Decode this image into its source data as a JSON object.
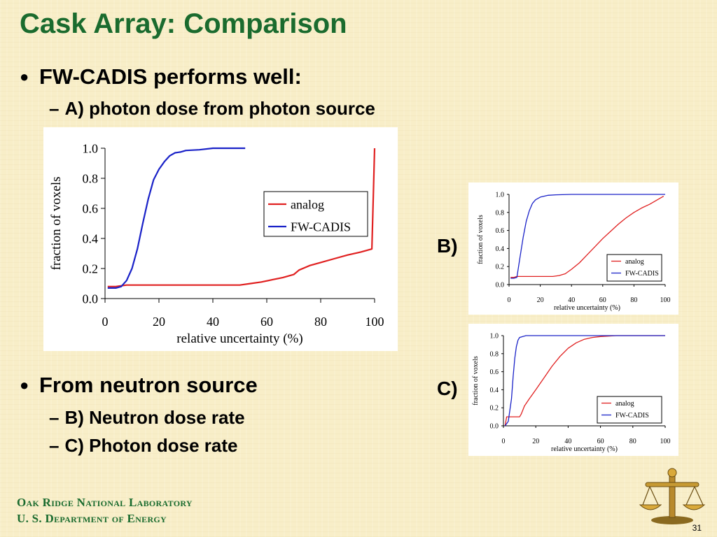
{
  "slide": {
    "title": "Cask Array: Comparison",
    "bullets": [
      {
        "text": "FW-CADIS performs well:",
        "subs": [
          "A) photon dose from photon source"
        ]
      },
      {
        "text": "From neutron source",
        "subs": [
          "B) Neutron dose rate",
          "C) Photon dose rate"
        ]
      }
    ],
    "panel_labels": {
      "b": "B)",
      "c": "C)"
    },
    "footer": {
      "line1": "Oak Ridge National Laboratory",
      "line2": "U. S. Department of Energy"
    },
    "page_number": "31",
    "accent_color": "#1a6b2e",
    "logo_icon": "scales-of-justice-icon"
  },
  "chart_data": [
    {
      "id": "A",
      "type": "line",
      "xlabel": "relative uncertainty (%)",
      "ylabel": "fraction of voxels",
      "xlim": [
        0,
        100
      ],
      "ylim": [
        0,
        1.0
      ],
      "xticks": [
        0,
        20,
        40,
        60,
        80,
        100
      ],
      "yticks": [
        "0.0",
        "0.2",
        "0.4",
        "0.6",
        "0.8",
        "1.0"
      ],
      "grid": false,
      "legend_position": "right-middle",
      "series": [
        {
          "name": "analog",
          "color": "#e02020",
          "x": [
            1,
            4,
            6,
            8,
            10,
            20,
            30,
            40,
            50,
            54,
            58,
            62,
            66,
            70,
            72,
            76,
            80,
            85,
            90,
            95,
            99,
            100
          ],
          "y": [
            0.08,
            0.08,
            0.085,
            0.09,
            0.09,
            0.09,
            0.09,
            0.09,
            0.09,
            0.1,
            0.11,
            0.125,
            0.14,
            0.16,
            0.19,
            0.22,
            0.24,
            0.265,
            0.29,
            0.31,
            0.33,
            1.0
          ]
        },
        {
          "name": "FW-CADIS",
          "color": "#1a22c8",
          "x": [
            1,
            4,
            6,
            8,
            10,
            12,
            14,
            16,
            18,
            20,
            22,
            24,
            26,
            28,
            30,
            35,
            40,
            45,
            52
          ],
          "y": [
            0.07,
            0.07,
            0.08,
            0.12,
            0.2,
            0.33,
            0.5,
            0.66,
            0.79,
            0.86,
            0.91,
            0.95,
            0.97,
            0.975,
            0.985,
            0.99,
            1.0,
            1.0,
            1.0
          ]
        }
      ]
    },
    {
      "id": "B",
      "type": "line",
      "xlabel": "relative uncertainty (%)",
      "ylabel": "fraction of voxels",
      "xlim": [
        0,
        100
      ],
      "ylim": [
        0,
        1.0
      ],
      "xticks": [
        0,
        20,
        40,
        60,
        80,
        100
      ],
      "yticks": [
        "0.0",
        "0.2",
        "0.4",
        "0.6",
        "0.8",
        "1.0"
      ],
      "grid": false,
      "legend_position": "bottom-right",
      "series": [
        {
          "name": "analog",
          "color": "#e02020",
          "x": [
            1,
            3,
            5,
            10,
            20,
            28,
            32,
            36,
            40,
            45,
            50,
            55,
            60,
            65,
            70,
            75,
            80,
            85,
            90,
            95,
            99
          ],
          "y": [
            0.08,
            0.08,
            0.09,
            0.09,
            0.09,
            0.09,
            0.1,
            0.12,
            0.17,
            0.24,
            0.33,
            0.42,
            0.51,
            0.59,
            0.67,
            0.74,
            0.8,
            0.85,
            0.89,
            0.94,
            0.98
          ]
        },
        {
          "name": "FW-CADIS",
          "color": "#1a22c8",
          "x": [
            1,
            3,
            5,
            7,
            9,
            11,
            13,
            15,
            17,
            20,
            25,
            30,
            40,
            60,
            80,
            100
          ],
          "y": [
            0.07,
            0.07,
            0.08,
            0.3,
            0.52,
            0.7,
            0.82,
            0.9,
            0.94,
            0.97,
            0.99,
            0.995,
            1.0,
            1.0,
            1.0,
            1.0
          ]
        }
      ]
    },
    {
      "id": "C",
      "type": "line",
      "xlabel": "relative uncertainty (%)",
      "ylabel": "fraction of voxels",
      "xlim": [
        0,
        100
      ],
      "ylim": [
        0,
        1.0
      ],
      "xticks": [
        0,
        20,
        40,
        60,
        80,
        100
      ],
      "yticks": [
        "0.0",
        "0.2",
        "0.4",
        "0.6",
        "0.8",
        "1.0"
      ],
      "grid": false,
      "legend_position": "bottom-right",
      "series": [
        {
          "name": "analog",
          "color": "#e02020",
          "x": [
            1,
            2,
            4,
            8,
            10,
            11,
            13,
            16,
            20,
            25,
            30,
            35,
            40,
            45,
            50,
            55,
            60,
            70,
            80,
            100
          ],
          "y": [
            0.0,
            0.1,
            0.1,
            0.1,
            0.1,
            0.13,
            0.22,
            0.3,
            0.4,
            0.53,
            0.66,
            0.77,
            0.86,
            0.92,
            0.96,
            0.98,
            0.99,
            1.0,
            1.0,
            1.0
          ]
        },
        {
          "name": "FW-CADIS",
          "color": "#1a22c8",
          "x": [
            1,
            3,
            5,
            6,
            7,
            8,
            9,
            10,
            12,
            14,
            20,
            40,
            60,
            100
          ],
          "y": [
            0.0,
            0.05,
            0.3,
            0.55,
            0.75,
            0.88,
            0.95,
            0.98,
            0.99,
            1.0,
            1.0,
            1.0,
            1.0,
            1.0
          ]
        }
      ]
    }
  ]
}
